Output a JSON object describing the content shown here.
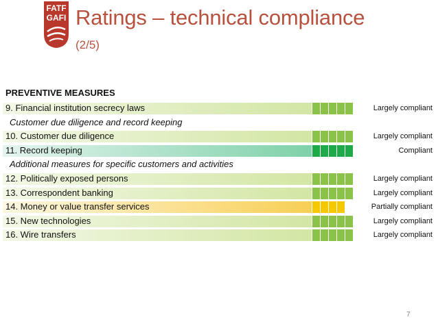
{
  "logo": {
    "line1": "FATF",
    "line2": "GAFI"
  },
  "header": {
    "title": "Ratings – technical compliance",
    "subtitle": "(2/5)"
  },
  "section_heading": "PREVENTIVE MEASURES",
  "rows": [
    {
      "label": "9. Financial institution secrecy laws",
      "rating": "Largely compliant",
      "fill": "largely"
    },
    {
      "subheading": "Customer due diligence and record keeping"
    },
    {
      "label": "10. Customer due diligence",
      "rating": "Largely compliant",
      "fill": "largely"
    },
    {
      "label": "11. Record keeping",
      "rating": "Compliant",
      "fill": "compliant"
    },
    {
      "subheading": "Additional measures for specific customers and activities"
    },
    {
      "label": "12. Politically exposed persons",
      "rating": "Largely compliant",
      "fill": "largely"
    },
    {
      "label": "13. Correspondent banking",
      "rating": "Largely compliant",
      "fill": "largely"
    },
    {
      "label": "14. Money or value transfer services",
      "rating": "Partially compliant",
      "fill": "partial"
    },
    {
      "label": "15. New technologies",
      "rating": "Largely compliant",
      "fill": "largely"
    },
    {
      "label": "16. Wire transfers",
      "rating": "Largely compliant",
      "fill": "largely"
    }
  ],
  "scale": {
    "largely": {
      "level": 0.9,
      "color_start": "#f2f8e6",
      "color_end": "#d3e6a4",
      "segment_color": "#8bc34a"
    },
    "compliant": {
      "level": 1.0,
      "color_start": "#e4f4ee",
      "color_end": "#7fd1a9",
      "segment_color": "#1faa4a"
    },
    "partial": {
      "level": 0.8,
      "color_start": "#fdf7e2",
      "color_end": "#f8cf55",
      "segment_color": "#f5c800"
    }
  },
  "page_number": "7"
}
